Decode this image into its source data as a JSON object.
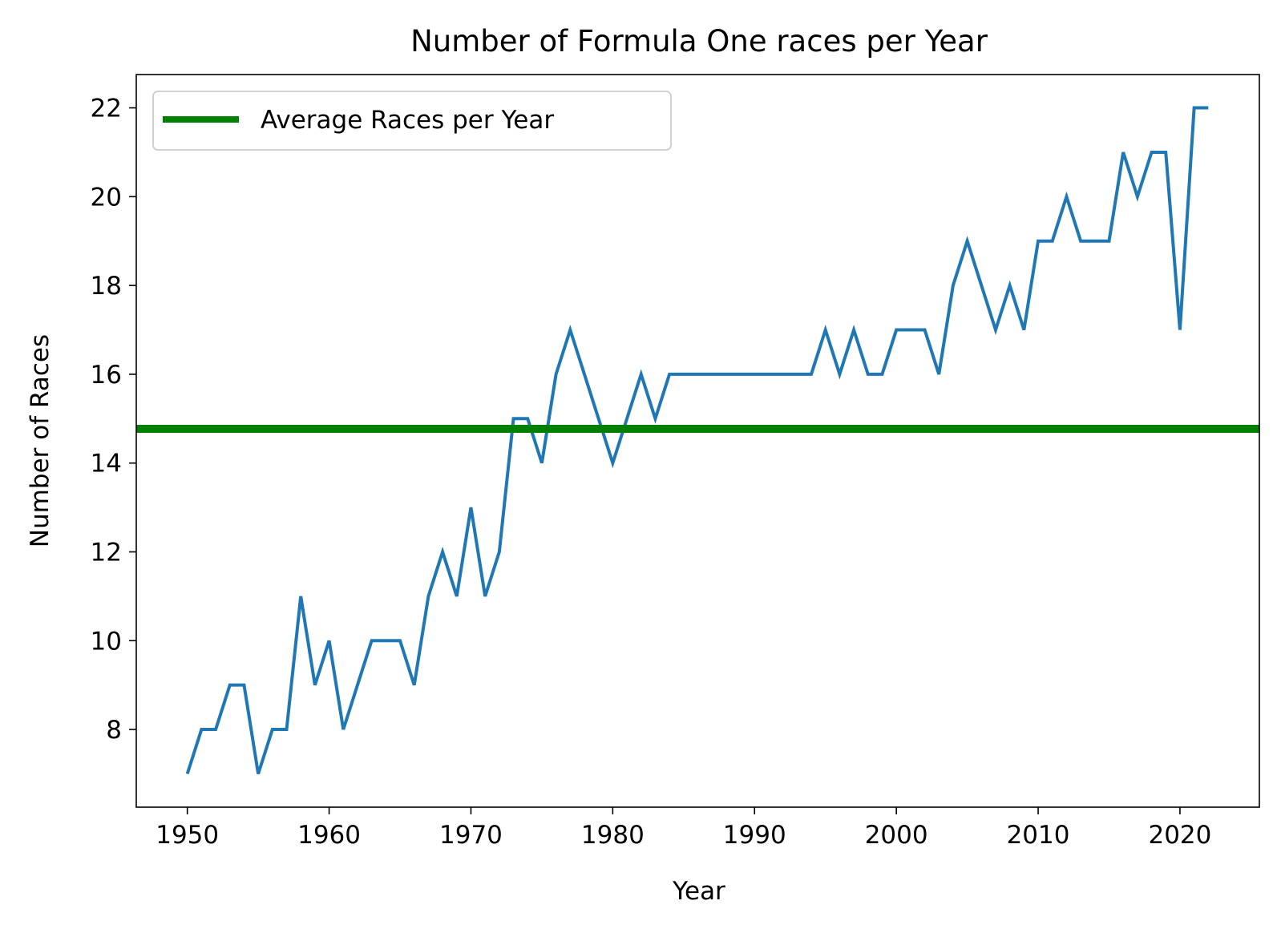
{
  "chart_data": {
    "type": "line",
    "title": "Number of Formula One races per Year",
    "xlabel": "Year",
    "ylabel": "Number of Races",
    "xlim": [
      1946.4,
      2025.6
    ],
    "ylim": [
      6.25,
      22.75
    ],
    "xticks": [
      1950,
      1960,
      1970,
      1980,
      1990,
      2000,
      2010,
      2020
    ],
    "yticks": [
      8,
      10,
      12,
      14,
      16,
      18,
      20,
      22
    ],
    "grid": false,
    "legend": {
      "placement": "top-left",
      "entries": [
        "Average Races per Year"
      ]
    },
    "series": [
      {
        "color": "#1f77b4",
        "x": [
          1950,
          1951,
          1952,
          1953,
          1954,
          1955,
          1956,
          1957,
          1958,
          1959,
          1960,
          1961,
          1962,
          1963,
          1964,
          1965,
          1966,
          1967,
          1968,
          1969,
          1970,
          1971,
          1972,
          1973,
          1974,
          1975,
          1976,
          1977,
          1978,
          1979,
          1980,
          1981,
          1982,
          1983,
          1984,
          1985,
          1986,
          1987,
          1988,
          1989,
          1990,
          1991,
          1992,
          1993,
          1994,
          1995,
          1996,
          1997,
          1998,
          1999,
          2000,
          2001,
          2002,
          2003,
          2004,
          2005,
          2006,
          2007,
          2008,
          2009,
          2010,
          2011,
          2012,
          2013,
          2014,
          2015,
          2016,
          2017,
          2018,
          2019,
          2020,
          2021,
          2022
        ],
        "values": [
          7,
          8,
          8,
          9,
          9,
          7,
          8,
          8,
          11,
          9,
          10,
          8,
          9,
          10,
          10,
          10,
          9,
          11,
          12,
          11,
          13,
          11,
          12,
          15,
          15,
          14,
          16,
          17,
          16,
          15,
          14,
          15,
          16,
          15,
          16,
          16,
          16,
          16,
          16,
          16,
          16,
          16,
          16,
          16,
          16,
          17,
          16,
          17,
          16,
          16,
          17,
          17,
          17,
          16,
          18,
          19,
          18,
          17,
          18,
          17,
          19,
          19,
          20,
          19,
          19,
          19,
          21,
          20,
          21,
          21,
          17,
          22,
          22
        ]
      },
      {
        "name": "Average Races per Year",
        "color": "#008000",
        "type": "hline",
        "value": 14.77
      }
    ]
  }
}
